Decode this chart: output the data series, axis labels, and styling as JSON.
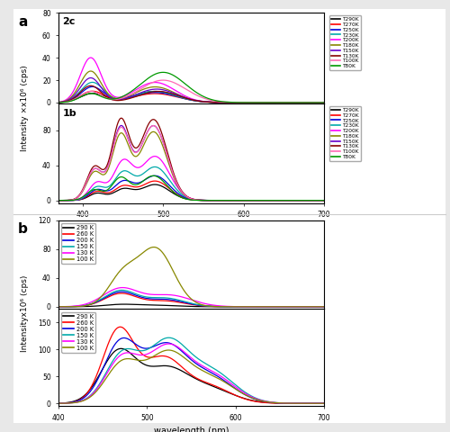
{
  "panel_a_colors_list": [
    "#000000",
    "#ff0000",
    "#0000dd",
    "#00aaaa",
    "#ff00ff",
    "#888800",
    "#6600cc",
    "#880000",
    "#ff69b4",
    "#009900"
  ],
  "panel_a_temps": [
    "T290K",
    "T270K",
    "T250K",
    "T230K",
    "T200K",
    "T180K",
    "T150K",
    "T130K",
    "T100K",
    "T80K"
  ],
  "panel_b_colors_list": [
    "#000000",
    "#ff0000",
    "#0000dd",
    "#00aaaa",
    "#ff00ff",
    "#888800"
  ],
  "panel_b_temps": [
    "290 K",
    "260 K",
    "200 K",
    "150 K",
    "130 K",
    "100 K"
  ],
  "bg_color": "#e8e8e8",
  "plot_bg": "#ffffff"
}
